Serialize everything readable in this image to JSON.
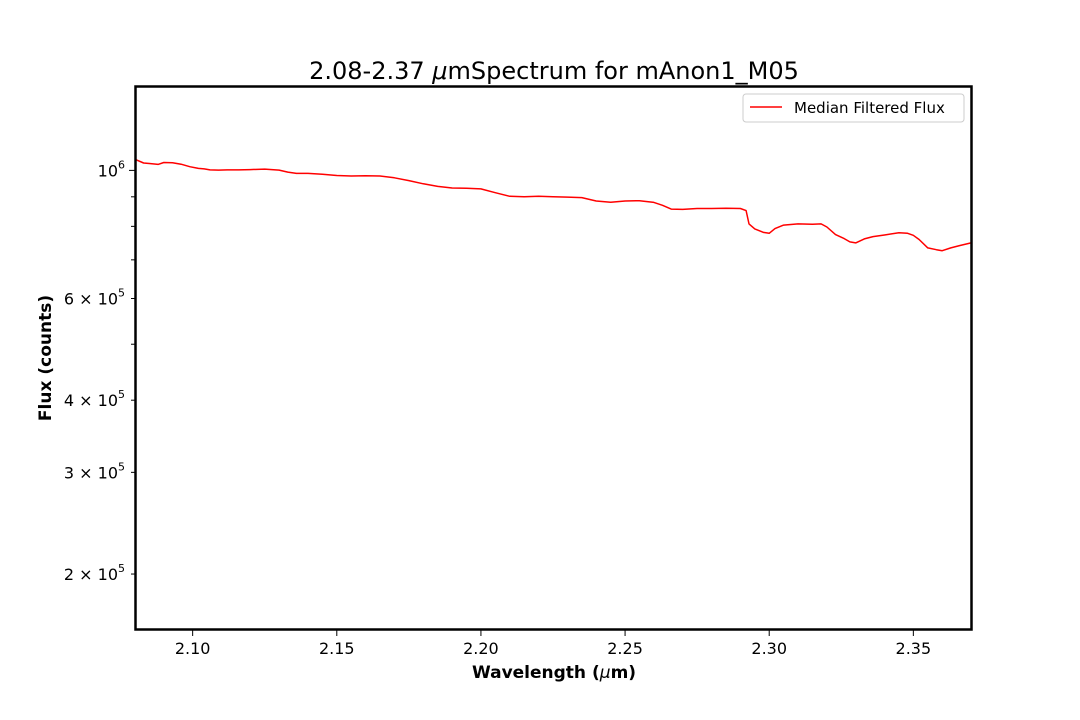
{
  "chart_data": {
    "type": "line",
    "title_prefix": "2.08-2.37 ",
    "title_unit": "μ",
    "title_suffix": "mSpectrum for mAnon1_M05",
    "xlabel_prefix": "Wavelength (",
    "xlabel_unit": "μ",
    "xlabel_suffix": "m)",
    "ylabel": "Flux (counts)",
    "y_scale": "log",
    "xlim": [
      2.08,
      2.37
    ],
    "ylim": [
      160000,
      1400000
    ],
    "x_ticks": [
      {
        "value": 2.1,
        "label": "2.10"
      },
      {
        "value": 2.15,
        "label": "2.15"
      },
      {
        "value": 2.2,
        "label": "2.20"
      },
      {
        "value": 2.25,
        "label": "2.25"
      },
      {
        "value": 2.3,
        "label": "2.30"
      },
      {
        "value": 2.35,
        "label": "2.35"
      }
    ],
    "y_major_ticks": [
      {
        "value": 1000000,
        "base": "10",
        "exp": "6"
      }
    ],
    "y_minor_labeled_ticks": [
      {
        "value": 200000,
        "mant": "2",
        "base": "10",
        "exp": "5"
      },
      {
        "value": 300000,
        "mant": "3",
        "base": "10",
        "exp": "5"
      },
      {
        "value": 400000,
        "mant": "4",
        "base": "10",
        "exp": "5"
      },
      {
        "value": 600000,
        "mant": "6",
        "base": "10",
        "exp": "5"
      }
    ],
    "y_minor_unlabeled_ticks": [
      500000,
      700000,
      800000,
      900000
    ],
    "legend": {
      "position": "upper right",
      "entries": [
        "Median Filtered Flux"
      ]
    },
    "series": [
      {
        "name": "Median Filtered Flux",
        "color": "#ff0000",
        "x": [
          2.08,
          2.083,
          2.085,
          2.088,
          2.09,
          2.093,
          2.096,
          2.099,
          2.102,
          2.104,
          2.106,
          2.109,
          2.112,
          2.116,
          2.12,
          2.125,
          2.13,
          2.133,
          2.136,
          2.14,
          2.145,
          2.15,
          2.155,
          2.16,
          2.165,
          2.17,
          2.175,
          2.18,
          2.185,
          2.19,
          2.195,
          2.2,
          2.205,
          2.21,
          2.215,
          2.22,
          2.225,
          2.23,
          2.235,
          2.24,
          2.245,
          2.25,
          2.255,
          2.26,
          2.263,
          2.266,
          2.27,
          2.275,
          2.28,
          2.285,
          2.29,
          2.292,
          2.293,
          2.295,
          2.298,
          2.3,
          2.302,
          2.305,
          2.31,
          2.315,
          2.318,
          2.32,
          2.323,
          2.326,
          2.328,
          2.33,
          2.333,
          2.336,
          2.34,
          2.345,
          2.348,
          2.35,
          2.352,
          2.355,
          2.358,
          2.36,
          2.363,
          2.366,
          2.37
        ],
        "y": [
          1045000,
          1030000,
          1028000,
          1024000,
          1032000,
          1031000,
          1025000,
          1015000,
          1008000,
          1006000,
          1002000,
          1001000,
          1002000,
          1002000,
          1003000,
          1005000,
          1001000,
          993000,
          988000,
          988000,
          985000,
          980000,
          978000,
          979000,
          978000,
          971000,
          960000,
          948000,
          938000,
          932000,
          931000,
          929000,
          915000,
          902000,
          900000,
          902000,
          900000,
          899000,
          897000,
          885000,
          881000,
          885000,
          886000,
          880000,
          870000,
          857000,
          856000,
          859000,
          859000,
          860000,
          859000,
          852000,
          808000,
          792000,
          781000,
          778000,
          793000,
          804000,
          808000,
          807000,
          808000,
          798000,
          774000,
          762000,
          752000,
          749000,
          761000,
          768000,
          773000,
          780000,
          778000,
          772000,
          759000,
          734000,
          729000,
          726000,
          734000,
          741000,
          749000
        ]
      }
    ]
  }
}
